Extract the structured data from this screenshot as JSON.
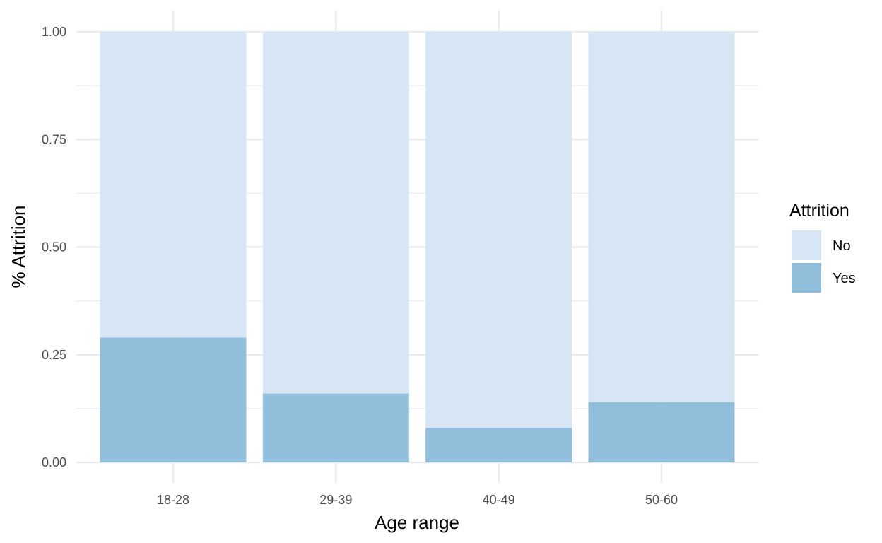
{
  "chart_data": {
    "type": "bar",
    "stacked": true,
    "categories": [
      "18-28",
      "29-39",
      "40-49",
      "50-60"
    ],
    "series": [
      {
        "name": "Yes",
        "values": [
          0.29,
          0.16,
          0.08,
          0.14
        ],
        "color": "#91BEDB"
      },
      {
        "name": "No",
        "values": [
          0.71,
          0.84,
          0.92,
          0.86
        ],
        "color": "#D6E6F4"
      }
    ],
    "xlabel": "Age range",
    "ylabel": "% Attrition",
    "ylim": [
      0,
      1
    ],
    "yticks": [
      "0.00",
      "0.25",
      "0.50",
      "0.75",
      "1.00"
    ],
    "grid": true,
    "legend": {
      "title": "Attrition",
      "position": "right",
      "items": [
        {
          "label": "No",
          "color": "#D6E6F4"
        },
        {
          "label": "Yes",
          "color": "#91BEDB"
        }
      ]
    },
    "grid_color": "#EBEBEB"
  }
}
